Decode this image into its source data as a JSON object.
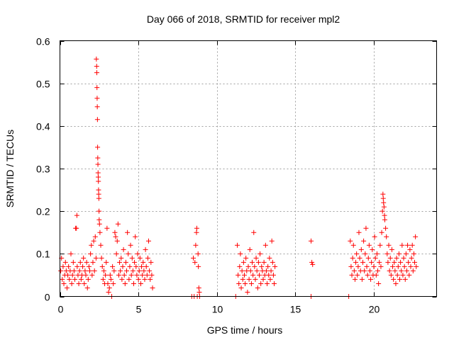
{
  "chart_data": {
    "type": "scatter",
    "title": "Day 066 of 2018, SRMTID for receiver mpl2",
    "xlabel": "GPS time / hours",
    "ylabel": "SRMTID / TECUs",
    "xlim": [
      0,
      24
    ],
    "ylim": [
      0,
      0.6
    ],
    "xticks": [
      0,
      5,
      10,
      15,
      20
    ],
    "yticks": [
      0,
      0.1,
      0.2,
      0.3,
      0.4,
      0.5,
      0.6
    ],
    "xtick_labels": [
      "0",
      "5",
      "10",
      "15",
      "20"
    ],
    "ytick_labels": [
      "0",
      "0.1",
      "0.2",
      "0.3",
      "0.4",
      "0.5",
      "0.6"
    ],
    "grid": true,
    "marker": "+",
    "color": "#ff0000",
    "series": [
      {
        "name": "SRMTID",
        "points": [
          [
            0.05,
            0.06
          ],
          [
            0.1,
            0.09
          ],
          [
            0.15,
            0.04
          ],
          [
            0.2,
            0.07
          ],
          [
            0.25,
            0.03
          ],
          [
            0.3,
            0.05
          ],
          [
            0.35,
            0.08
          ],
          [
            0.4,
            0.06
          ],
          [
            0.45,
            0.02
          ],
          [
            0.5,
            0.05
          ],
          [
            0.55,
            0.07
          ],
          [
            0.6,
            0.04
          ],
          [
            0.65,
            0.06
          ],
          [
            0.7,
            0.1
          ],
          [
            0.75,
            0.03
          ],
          [
            0.8,
            0.05
          ],
          [
            0.85,
            0.08
          ],
          [
            0.9,
            0.06
          ],
          [
            0.95,
            0.04
          ],
          [
            1.0,
            0.16
          ],
          [
            1.05,
            0.16
          ],
          [
            1.08,
            0.19
          ],
          [
            1.1,
            0.07
          ],
          [
            1.15,
            0.05
          ],
          [
            1.2,
            0.03
          ],
          [
            1.25,
            0.06
          ],
          [
            1.3,
            0.08
          ],
          [
            1.35,
            0.04
          ],
          [
            1.4,
            0.05
          ],
          [
            1.45,
            0.07
          ],
          [
            1.5,
            0.09
          ],
          [
            1.55,
            0.03
          ],
          [
            1.6,
            0.06
          ],
          [
            1.65,
            0.05
          ],
          [
            1.7,
            0.08
          ],
          [
            1.75,
            0.02
          ],
          [
            1.8,
            0.04
          ],
          [
            1.85,
            0.07
          ],
          [
            1.9,
            0.06
          ],
          [
            1.95,
            0.1
          ],
          [
            2.0,
            0.12
          ],
          [
            2.05,
            0.05
          ],
          [
            2.1,
            0.08
          ],
          [
            2.15,
            0.13
          ],
          [
            2.2,
            0.06
          ],
          [
            2.25,
            0.14
          ],
          [
            2.3,
            0.09
          ],
          [
            2.32,
            0.557
          ],
          [
            2.34,
            0.54
          ],
          [
            2.35,
            0.525
          ],
          [
            2.36,
            0.49
          ],
          [
            2.37,
            0.465
          ],
          [
            2.38,
            0.445
          ],
          [
            2.39,
            0.415
          ],
          [
            2.4,
            0.35
          ],
          [
            2.41,
            0.325
          ],
          [
            2.42,
            0.31
          ],
          [
            2.43,
            0.29
          ],
          [
            2.44,
            0.28
          ],
          [
            2.45,
            0.27
          ],
          [
            2.46,
            0.25
          ],
          [
            2.47,
            0.24
          ],
          [
            2.48,
            0.23
          ],
          [
            2.49,
            0.2
          ],
          [
            2.5,
            0.18
          ],
          [
            2.52,
            0.17
          ],
          [
            2.55,
            0.15
          ],
          [
            2.6,
            0.12
          ],
          [
            2.65,
            0.09
          ],
          [
            2.7,
            0.07
          ],
          [
            2.75,
            0.04
          ],
          [
            2.8,
            0.06
          ],
          [
            2.85,
            0.03
          ],
          [
            2.9,
            0.05
          ],
          [
            2.95,
            0.08
          ],
          [
            3.0,
            0.16
          ],
          [
            3.05,
            0.03
          ],
          [
            3.1,
            0.01
          ],
          [
            3.15,
            0.02
          ],
          [
            3.2,
            0.05
          ],
          [
            3.25,
            0.04
          ],
          [
            3.3,
            0.0
          ],
          [
            3.35,
            0.07
          ],
          [
            3.4,
            0.03
          ],
          [
            3.45,
            0.06
          ],
          [
            3.5,
            0.15
          ],
          [
            3.55,
            0.14
          ],
          [
            3.6,
            0.1
          ],
          [
            3.65,
            0.13
          ],
          [
            3.7,
            0.17
          ],
          [
            3.75,
            0.05
          ],
          [
            3.8,
            0.08
          ],
          [
            3.85,
            0.06
          ],
          [
            3.9,
            0.09
          ],
          [
            3.95,
            0.04
          ],
          [
            4.0,
            0.07
          ],
          [
            4.05,
            0.11
          ],
          [
            4.1,
            0.05
          ],
          [
            4.15,
            0.03
          ],
          [
            4.2,
            0.08
          ],
          [
            4.25,
            0.06
          ],
          [
            4.3,
            0.15
          ],
          [
            4.35,
            0.1
          ],
          [
            4.4,
            0.04
          ],
          [
            4.45,
            0.07
          ],
          [
            4.5,
            0.12
          ],
          [
            4.55,
            0.05
          ],
          [
            4.6,
            0.09
          ],
          [
            4.65,
            0.06
          ],
          [
            4.7,
            0.03
          ],
          [
            4.75,
            0.08
          ],
          [
            4.8,
            0.14
          ],
          [
            4.85,
            0.07
          ],
          [
            4.9,
            0.05
          ],
          [
            4.95,
            0.1
          ],
          [
            5.0,
            0.04
          ],
          [
            5.05,
            0.06
          ],
          [
            5.1,
            0.09
          ],
          [
            5.15,
            0.03
          ],
          [
            5.2,
            0.07
          ],
          [
            5.25,
            0.05
          ],
          [
            5.3,
            0.08
          ],
          [
            5.35,
            0.06
          ],
          [
            5.4,
            0.04
          ],
          [
            5.45,
            0.11
          ],
          [
            5.5,
            0.07
          ],
          [
            5.55,
            0.05
          ],
          [
            5.6,
            0.09
          ],
          [
            5.65,
            0.13
          ],
          [
            5.7,
            0.06
          ],
          [
            5.75,
            0.04
          ],
          [
            5.8,
            0.08
          ],
          [
            5.85,
            0.05
          ],
          [
            5.9,
            0.02
          ],
          [
            8.4,
            0.0
          ],
          [
            8.5,
            0.09
          ],
          [
            8.55,
            0.0
          ],
          [
            8.6,
            0.08
          ],
          [
            8.65,
            0.12
          ],
          [
            8.7,
            0.15
          ],
          [
            8.72,
            0.16
          ],
          [
            8.75,
            0.0
          ],
          [
            8.8,
            0.1
          ],
          [
            8.82,
            0.07
          ],
          [
            8.85,
            0.02
          ],
          [
            8.88,
            0.01
          ],
          [
            8.9,
            0.0
          ],
          [
            11.2,
            0.0
          ],
          [
            11.3,
            0.12
          ],
          [
            11.35,
            0.05
          ],
          [
            11.4,
            0.03
          ],
          [
            11.45,
            0.07
          ],
          [
            11.5,
            0.1
          ],
          [
            11.55,
            0.02
          ],
          [
            11.6,
            0.06
          ],
          [
            11.65,
            0.04
          ],
          [
            11.7,
            0.08
          ],
          [
            11.75,
            0.05
          ],
          [
            11.8,
            0.03
          ],
          [
            11.85,
            0.09
          ],
          [
            11.9,
            0.06
          ],
          [
            11.95,
            0.01
          ],
          [
            12.0,
            0.07
          ],
          [
            12.05,
            0.04
          ],
          [
            12.1,
            0.11
          ],
          [
            12.15,
            0.06
          ],
          [
            12.2,
            0.03
          ],
          [
            12.25,
            0.08
          ],
          [
            12.3,
            0.05
          ],
          [
            12.35,
            0.15
          ],
          [
            12.4,
            0.07
          ],
          [
            12.45,
            0.04
          ],
          [
            12.5,
            0.09
          ],
          [
            12.55,
            0.06
          ],
          [
            12.6,
            0.02
          ],
          [
            12.65,
            0.08
          ],
          [
            12.7,
            0.05
          ],
          [
            12.75,
            0.1
          ],
          [
            12.8,
            0.03
          ],
          [
            12.85,
            0.07
          ],
          [
            12.9,
            0.06
          ],
          [
            12.95,
            0.04
          ],
          [
            13.0,
            0.08
          ],
          [
            13.05,
            0.05
          ],
          [
            13.1,
            0.12
          ],
          [
            13.15,
            0.06
          ],
          [
            13.2,
            0.03
          ],
          [
            13.25,
            0.07
          ],
          [
            13.3,
            0.05
          ],
          [
            13.35,
            0.09
          ],
          [
            13.4,
            0.04
          ],
          [
            13.45,
            0.06
          ],
          [
            13.5,
            0.13
          ],
          [
            13.55,
            0.08
          ],
          [
            13.6,
            0.05
          ],
          [
            13.65,
            0.03
          ],
          [
            13.7,
            0.07
          ],
          [
            16.0,
            0.13
          ],
          [
            16.05,
            0.08
          ],
          [
            16.1,
            0.075
          ],
          [
            16.0,
            0.0
          ],
          [
            18.4,
            0.0
          ],
          [
            18.5,
            0.13
          ],
          [
            18.55,
            0.07
          ],
          [
            18.6,
            0.05
          ],
          [
            18.65,
            0.09
          ],
          [
            18.7,
            0.12
          ],
          [
            18.75,
            0.06
          ],
          [
            18.8,
            0.04
          ],
          [
            18.85,
            0.08
          ],
          [
            18.9,
            0.1
          ],
          [
            18.95,
            0.05
          ],
          [
            19.0,
            0.07
          ],
          [
            19.05,
            0.15
          ],
          [
            19.1,
            0.09
          ],
          [
            19.15,
            0.06
          ],
          [
            19.2,
            0.11
          ],
          [
            19.25,
            0.04
          ],
          [
            19.3,
            0.08
          ],
          [
            19.35,
            0.13
          ],
          [
            19.4,
            0.06
          ],
          [
            19.45,
            0.1
          ],
          [
            19.5,
            0.16
          ],
          [
            19.55,
            0.07
          ],
          [
            19.6,
            0.05
          ],
          [
            19.65,
            0.09
          ],
          [
            19.7,
            0.12
          ],
          [
            19.75,
            0.06
          ],
          [
            19.8,
            0.04
          ],
          [
            19.85,
            0.08
          ],
          [
            19.9,
            0.11
          ],
          [
            19.95,
            0.05
          ],
          [
            20.0,
            0.07
          ],
          [
            20.05,
            0.14
          ],
          [
            20.1,
            0.09
          ],
          [
            20.15,
            0.05
          ],
          [
            20.2,
            0.1
          ],
          [
            20.25,
            0.06
          ],
          [
            20.3,
            0.03
          ],
          [
            20.35,
            0.08
          ],
          [
            20.4,
            0.12
          ],
          [
            20.45,
            0.07
          ],
          [
            20.5,
            0.15
          ],
          [
            20.55,
            0.2
          ],
          [
            20.58,
            0.24
          ],
          [
            20.6,
            0.23
          ],
          [
            20.62,
            0.22
          ],
          [
            20.65,
            0.21
          ],
          [
            20.68,
            0.19
          ],
          [
            20.7,
            0.18
          ],
          [
            20.75,
            0.16
          ],
          [
            20.8,
            0.14
          ],
          [
            20.85,
            0.1
          ],
          [
            20.9,
            0.08
          ],
          [
            20.95,
            0.12
          ],
          [
            21.0,
            0.06
          ],
          [
            21.05,
            0.09
          ],
          [
            21.1,
            0.05
          ],
          [
            21.15,
            0.11
          ],
          [
            21.2,
            0.07
          ],
          [
            21.25,
            0.04
          ],
          [
            21.3,
            0.08
          ],
          [
            21.35,
            0.06
          ],
          [
            21.4,
            0.03
          ],
          [
            21.45,
            0.09
          ],
          [
            21.5,
            0.05
          ],
          [
            21.55,
            0.07
          ],
          [
            21.6,
            0.1
          ],
          [
            21.65,
            0.04
          ],
          [
            21.7,
            0.08
          ],
          [
            21.75,
            0.06
          ],
          [
            21.8,
            0.12
          ],
          [
            21.85,
            0.05
          ],
          [
            21.9,
            0.09
          ],
          [
            21.95,
            0.07
          ],
          [
            22.0,
            0.04
          ],
          [
            22.05,
            0.1
          ],
          [
            22.1,
            0.06
          ],
          [
            22.15,
            0.12
          ],
          [
            22.2,
            0.08
          ],
          [
            22.25,
            0.05
          ],
          [
            22.3,
            0.11
          ],
          [
            22.35,
            0.07
          ],
          [
            22.4,
            0.09
          ],
          [
            22.45,
            0.12
          ],
          [
            22.5,
            0.06
          ],
          [
            22.55,
            0.1
          ],
          [
            22.6,
            0.08
          ],
          [
            22.65,
            0.14
          ],
          [
            22.7,
            0.07
          ]
        ]
      }
    ]
  }
}
